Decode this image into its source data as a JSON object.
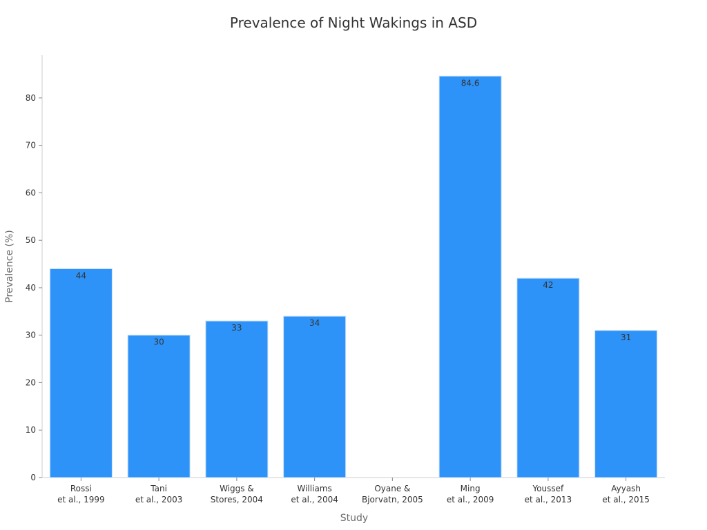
{
  "chart_data": {
    "type": "bar",
    "title": "Prevalence of Night Wakings in ASD",
    "xlabel": "Study",
    "ylabel": "Prevalence (%)",
    "ylim": [
      0,
      89
    ],
    "yticks": [
      0,
      10,
      20,
      30,
      40,
      50,
      60,
      70,
      80
    ],
    "categories": [
      [
        "Rossi",
        "et al., 1999"
      ],
      [
        "Tani",
        "et al., 2003"
      ],
      [
        "Wiggs &",
        "Stores, 2004"
      ],
      [
        "Williams",
        "et al., 2004"
      ],
      [
        "Oyane &",
        "Bjorvatn, 2005"
      ],
      [
        "Ming",
        "et al., 2009"
      ],
      [
        "Youssef",
        "et al., 2013"
      ],
      [
        "Ayyash",
        "et al., 2015"
      ]
    ],
    "values": [
      44,
      30,
      33,
      34,
      null,
      84.6,
      42,
      31
    ],
    "data_labels": [
      "44",
      "30",
      "33",
      "34",
      "",
      "84.6",
      "42",
      "31"
    ],
    "colors": {
      "bar": "#2e93f9",
      "bar_edge": "#c9dff7",
      "axis": "#cccccc"
    },
    "grid": false,
    "legend": "none"
  }
}
